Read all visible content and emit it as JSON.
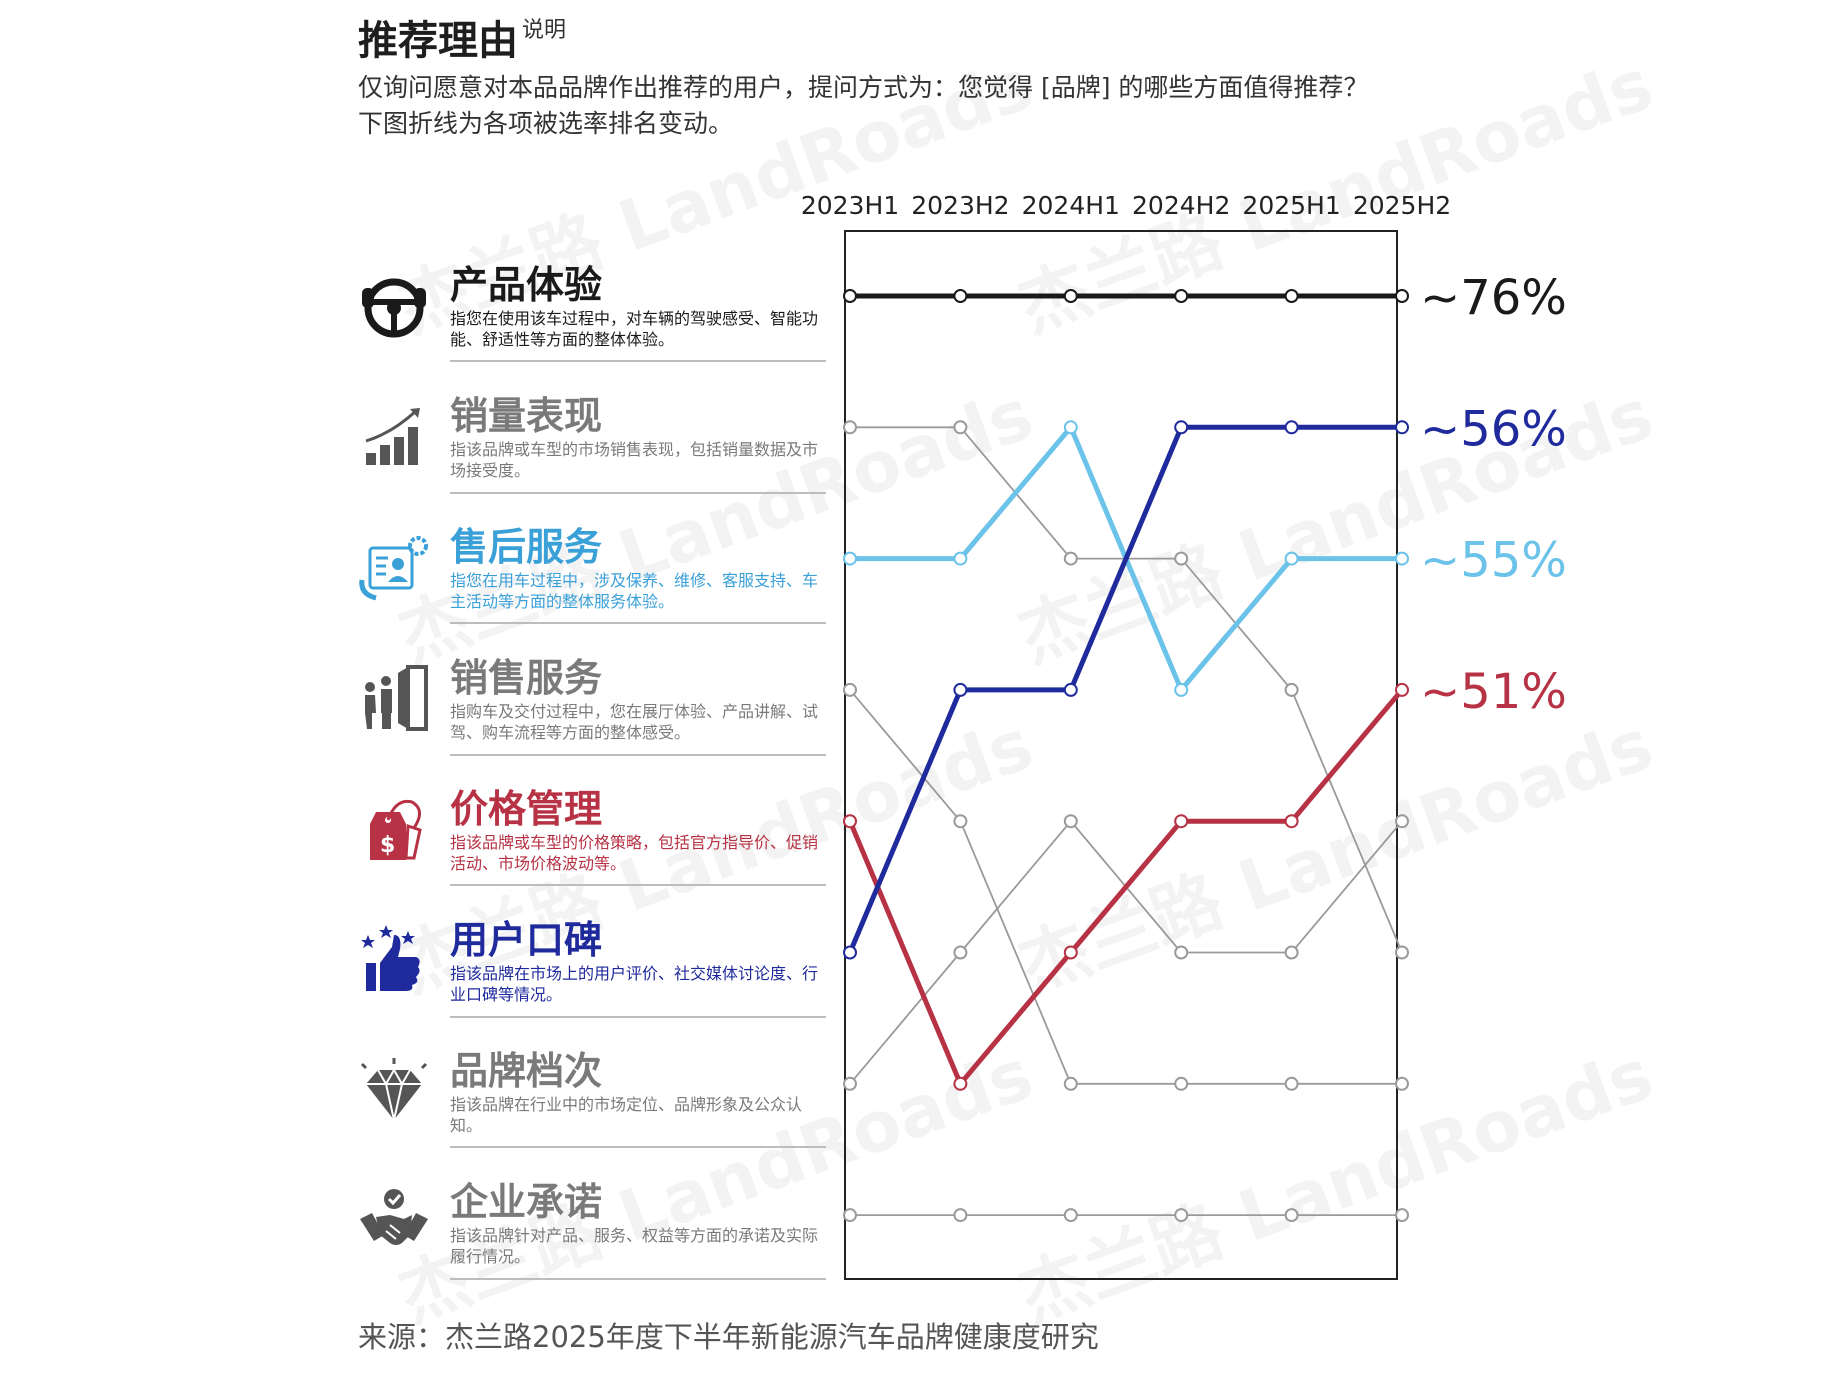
{
  "title": "推荐理由",
  "title_note": "说明",
  "description": {
    "line1": "仅询问愿意对本品品牌作出推荐的用户，提问方式为：您觉得 [品牌] 的哪些方面值得推荐？",
    "line2": "下图折线为各项被选率排名变动。"
  },
  "categories": [
    {
      "name": "产品体验",
      "desc": "指您在使用该车过程中，对车辆的驾驶感受、智能功能、舒适性等方面的整体体验。",
      "color": "#1a1a1a",
      "icon": "steering-wheel-icon"
    },
    {
      "name": "销量表现",
      "desc": "指该品牌或车型的市场销售表现，包括销量数据及市场接受度。",
      "color": "#7a7a7a",
      "icon": "bar-growth-icon"
    },
    {
      "name": "售后服务",
      "desc": "指您在用车过程中，涉及保养、维修、客服支持、车主活动等方面的整体服务体验。",
      "color": "#3aa0d8",
      "icon": "customer-service-icon"
    },
    {
      "name": "销售服务",
      "desc": "指购车及交付过程中，您在展厅体验、产品讲解、试驾、购车流程等方面的整体感受。",
      "color": "#7a7a7a",
      "icon": "showroom-door-icon"
    },
    {
      "name": "价格管理",
      "desc": "指该品牌或车型的价格策略，包括官方指导价、促销活动、市场价格波动等。",
      "color": "#b73244",
      "icon": "price-tag-icon"
    },
    {
      "name": "用户口碑",
      "desc": "指该品牌在市场上的用户评价、社交媒体讨论度、行业口碑等情况。",
      "color": "#1f2a9c",
      "icon": "thumbs-up-icon"
    },
    {
      "name": "品牌档次",
      "desc": "指该品牌在行业中的市场定位、品牌形象及公众认知。",
      "color": "#7a7a7a",
      "icon": "diamond-icon"
    },
    {
      "name": "企业承诺",
      "desc": "指该品牌针对产品、服务、权益等方面的承诺及实际履行情况。",
      "color": "#7a7a7a",
      "icon": "handshake-icon"
    }
  ],
  "chart_data": {
    "type": "line",
    "subtype": "rank-bump",
    "x": [
      "2023H1",
      "2023H2",
      "2024H1",
      "2024H2",
      "2025H1",
      "2025H2"
    ],
    "y_axis": "rank (1 = top)",
    "series": [
      {
        "name": "产品体验",
        "ranks": [
          1,
          1,
          1,
          1,
          1,
          1
        ],
        "color": "#1a1a1a",
        "highlight": true,
        "end_label": "~76%"
      },
      {
        "name": "销量表现",
        "ranks": [
          2,
          2,
          3,
          3,
          4,
          6
        ],
        "color": "#9a9a9a",
        "highlight": false,
        "end_label": ""
      },
      {
        "name": "售后服务",
        "ranks": [
          3,
          3,
          2,
          4,
          3,
          3
        ],
        "color": "#6cc3ea",
        "highlight": true,
        "end_label": "~55%"
      },
      {
        "name": "销售服务",
        "ranks": [
          4,
          5,
          7,
          7,
          7,
          7
        ],
        "color": "#9a9a9a",
        "highlight": false,
        "end_label": ""
      },
      {
        "name": "价格管理",
        "ranks": [
          5,
          7,
          6,
          5,
          5,
          4
        ],
        "color": "#b73244",
        "highlight": true,
        "end_label": "~51%"
      },
      {
        "name": "用户口碑",
        "ranks": [
          6,
          4,
          4,
          2,
          2,
          2
        ],
        "color": "#1f2a9c",
        "highlight": true,
        "end_label": "~56%"
      },
      {
        "name": "品牌档次",
        "ranks": [
          7,
          6,
          5,
          6,
          6,
          5
        ],
        "color": "#9a9a9a",
        "highlight": false,
        "end_label": ""
      },
      {
        "name": "企业承诺",
        "ranks": [
          8,
          8,
          8,
          8,
          8,
          8
        ],
        "color": "#9a9a9a",
        "highlight": false,
        "end_label": ""
      }
    ]
  },
  "source": "来源：杰兰路2025年度下半年新能源汽车品牌健康度研究",
  "watermark": "杰兰路 LandRoads"
}
